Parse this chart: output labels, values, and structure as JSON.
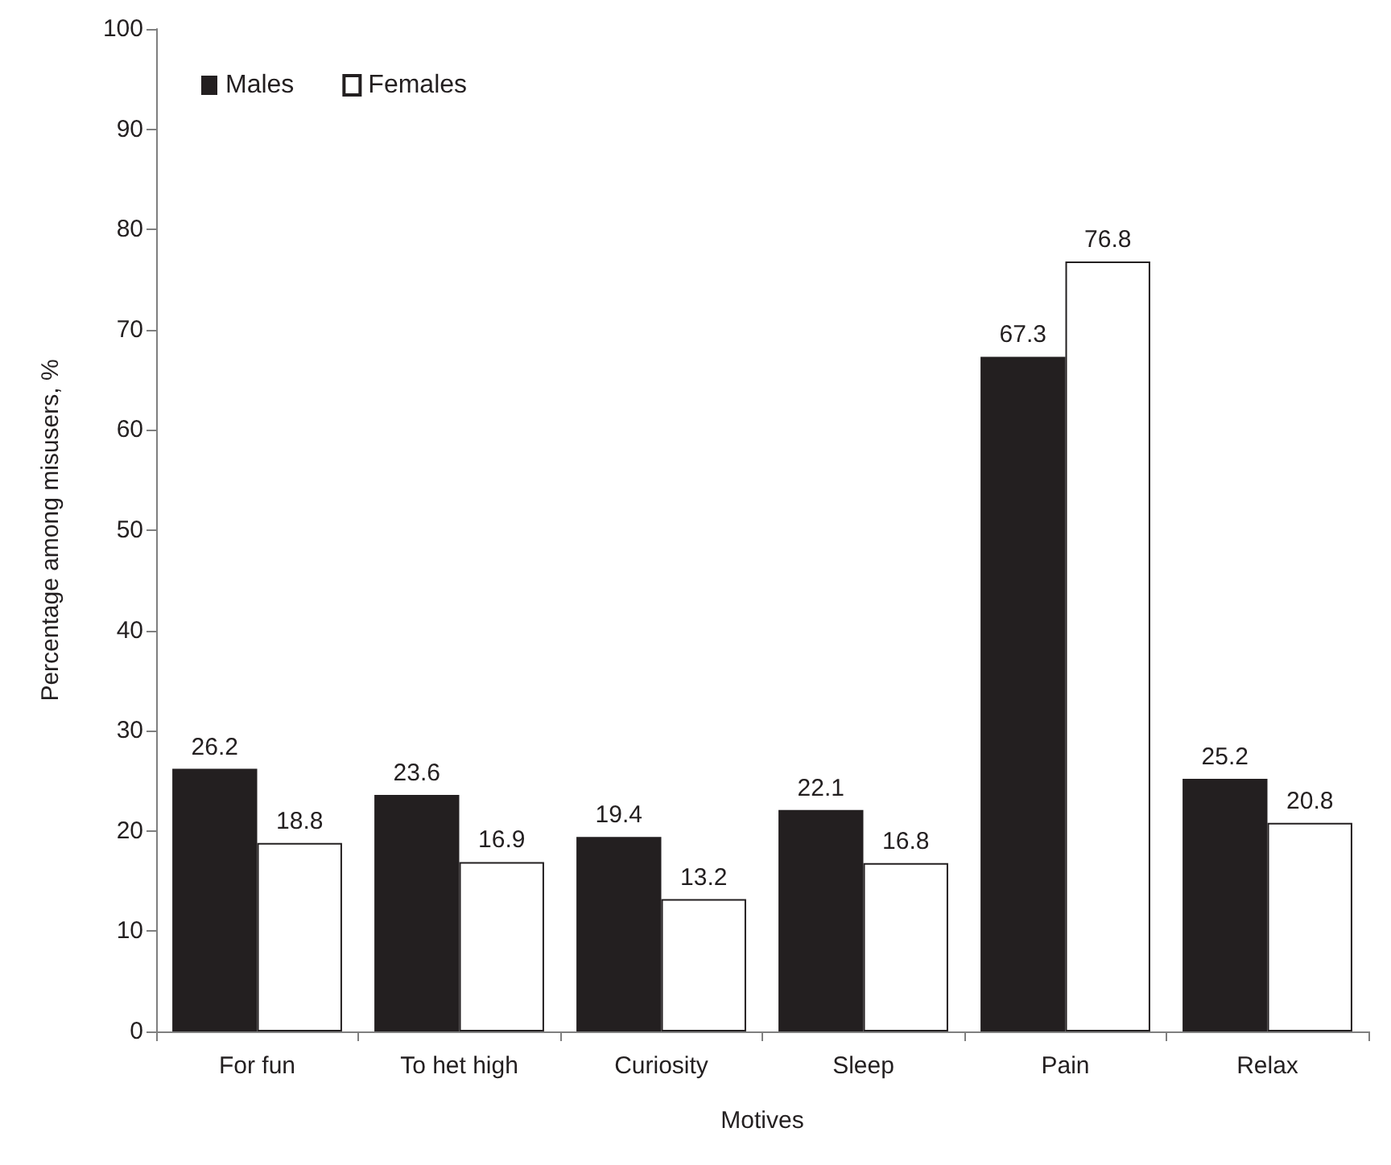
{
  "chart_data": {
    "type": "bar",
    "xlabel": "Motives",
    "ylabel": "Percentage among misusers, %",
    "categories": [
      "For fun",
      "To het high",
      "Curiosity",
      "Sleep",
      "Pain",
      "Relax"
    ],
    "series": [
      {
        "name": "Males",
        "color": "#231f20",
        "values": [
          26.2,
          23.6,
          19.4,
          22.1,
          67.3,
          25.2
        ]
      },
      {
        "name": "Females",
        "color": "#ffffff",
        "values": [
          18.8,
          16.9,
          13.2,
          16.8,
          76.8,
          20.8
        ]
      }
    ],
    "ylim": [
      0,
      100
    ],
    "yticks": [
      0,
      10,
      20,
      30,
      40,
      50,
      60,
      70,
      80,
      90,
      100
    ],
    "grid": false,
    "legend": "top left",
    "data_labels": true
  }
}
